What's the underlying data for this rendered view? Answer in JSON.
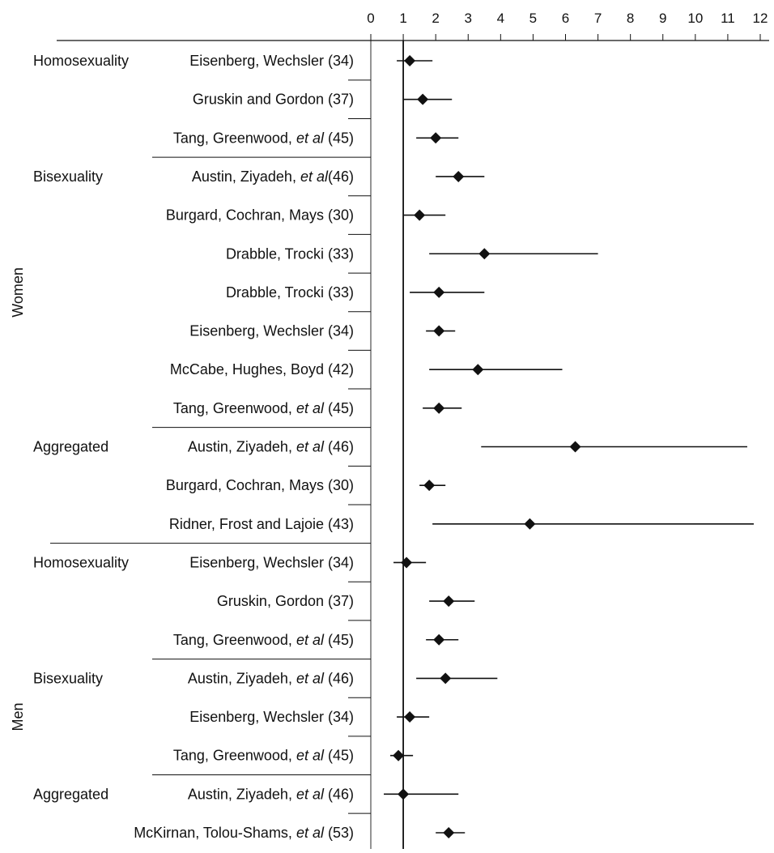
{
  "chart_data": {
    "type": "scatter",
    "subtype": "forest-plot",
    "xlim": [
      0,
      12
    ],
    "reference_line": 1,
    "x_ticks": [
      "0",
      "1",
      "2",
      "3",
      "4",
      "5",
      "6",
      "7",
      "8",
      "9",
      "10",
      "11",
      "12"
    ],
    "colors": {
      "ink": "#111111"
    },
    "groups": [
      {
        "label": "Women",
        "rows": [
          0,
          12
        ]
      },
      {
        "label": "Men",
        "rows": [
          13,
          21
        ]
      }
    ],
    "subgroups": [
      {
        "label": "Homosexuality",
        "row": 0
      },
      {
        "label": "Bisexuality",
        "row": 3
      },
      {
        "label": "Aggregated",
        "row": 10
      },
      {
        "label": "Homosexuality",
        "row": 13
      },
      {
        "label": "Bisexuality",
        "row": 16
      },
      {
        "label": "Aggregated",
        "row": 19
      }
    ],
    "studies": [
      {
        "label": "Eisenberg, Wechsler (34)",
        "estimate": 1.2,
        "lower": 0.8,
        "upper": 1.9
      },
      {
        "label": "Gruskin and Gordon (37)",
        "estimate": 1.6,
        "lower": 1.0,
        "upper": 2.5
      },
      {
        "label": "Tang, Greenwood, et al (45)",
        "estimate": 2.0,
        "lower": 1.4,
        "upper": 2.7
      },
      {
        "label": "Austin, Ziyadeh, et al(46)",
        "estimate": 2.7,
        "lower": 2.0,
        "upper": 3.5
      },
      {
        "label": "Burgard, Cochran, Mays (30)",
        "estimate": 1.5,
        "lower": 1.0,
        "upper": 2.3
      },
      {
        "label": "Drabble, Trocki (33)",
        "estimate": 3.5,
        "lower": 1.8,
        "upper": 7.0
      },
      {
        "label": "Drabble, Trocki (33)",
        "estimate": 2.1,
        "lower": 1.2,
        "upper": 3.5
      },
      {
        "label": "Eisenberg, Wechsler (34)",
        "estimate": 2.1,
        "lower": 1.7,
        "upper": 2.6
      },
      {
        "label": "McCabe, Hughes, Boyd (42)",
        "estimate": 3.3,
        "lower": 1.8,
        "upper": 5.9
      },
      {
        "label": "Tang, Greenwood, et al (45)",
        "estimate": 2.1,
        "lower": 1.6,
        "upper": 2.8
      },
      {
        "label": "Austin, Ziyadeh, et al (46)",
        "estimate": 6.3,
        "lower": 3.4,
        "upper": 11.6
      },
      {
        "label": "Burgard, Cochran, Mays (30)",
        "estimate": 1.8,
        "lower": 1.5,
        "upper": 2.3
      },
      {
        "label": "Ridner, Frost and Lajoie (43)",
        "estimate": 4.9,
        "lower": 1.9,
        "upper": 11.8
      },
      {
        "label": "Eisenberg, Wechsler (34)",
        "estimate": 1.1,
        "lower": 0.7,
        "upper": 1.7
      },
      {
        "label": "Gruskin, Gordon (37)",
        "estimate": 2.4,
        "lower": 1.8,
        "upper": 3.2
      },
      {
        "label": "Tang, Greenwood, et al (45)",
        "estimate": 2.1,
        "lower": 1.7,
        "upper": 2.7
      },
      {
        "label": "Austin, Ziyadeh, et al (46)",
        "estimate": 2.3,
        "lower": 1.4,
        "upper": 3.9
      },
      {
        "label": "Eisenberg, Wechsler (34)",
        "estimate": 1.2,
        "lower": 0.8,
        "upper": 1.8
      },
      {
        "label": "Tang, Greenwood, et al (45)",
        "estimate": 0.85,
        "lower": 0.6,
        "upper": 1.3
      },
      {
        "label": "Austin, Ziyadeh, et al (46)",
        "estimate": 1.0,
        "lower": 0.4,
        "upper": 2.7
      },
      {
        "label": "McKirnan, Tolou-Shams, et al (53)",
        "estimate": 2.4,
        "lower": 2.0,
        "upper": 2.9
      }
    ]
  }
}
